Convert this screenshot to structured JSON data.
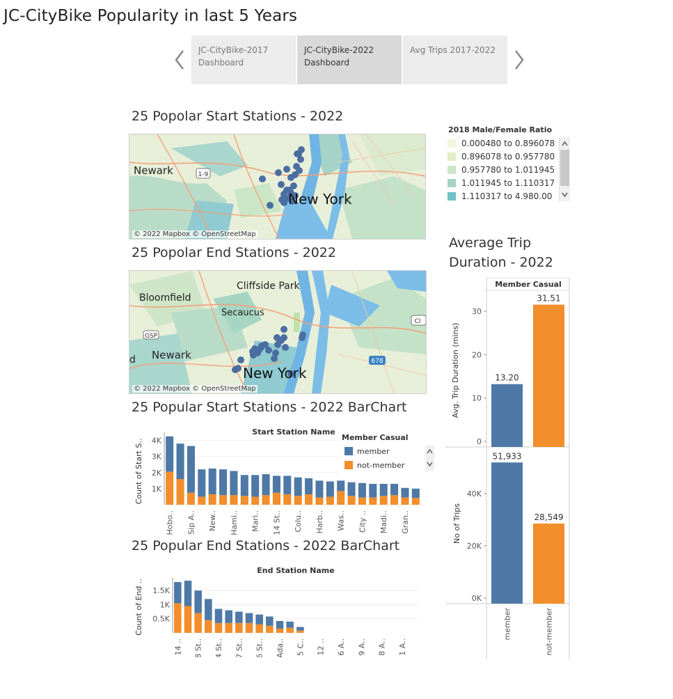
{
  "title": "JC-CityBike Popularity in last 5 Years",
  "tabs": [
    {
      "label": "JC-CityBike-2017 Dashboard",
      "line1": "JC-CityBike-2017",
      "line2": "Dashboard",
      "active": false
    },
    {
      "label": "JC-CityBike-2022 Dashboard",
      "line1": "JC-CityBike-2022",
      "line2": "Dashboard",
      "active": true
    },
    {
      "label": "Avg Trips 2017-2022",
      "line1": "Avg Trips 2017-2022",
      "line2": "",
      "active": false
    }
  ],
  "icons": {
    "prev": "chevron-left-icon",
    "next": "chevron-right-icon"
  },
  "maps": {
    "start": {
      "title": "25 Popolar Start Stations - 2022",
      "attribution": "© 2022 Mapbox © OpenStreetMap",
      "labels": [
        "Newark",
        "New York",
        "1-9"
      ]
    },
    "end": {
      "title": "25 Popolar End Stations - 2022",
      "attribution": "© 2022 Mapbox © OpenStreetMap",
      "labels": [
        "Cliffside Park",
        "Bloomfield",
        "Secaucus",
        "Newark",
        "New York",
        "GSP",
        "678",
        "CI",
        "d"
      ]
    }
  },
  "legend": {
    "title": "2018 Male/Female Ratio",
    "items": [
      {
        "label": "0.000480 to 0.896078",
        "color": "#f4f7dd"
      },
      {
        "label": "0.896078 to 0.957780",
        "color": "#e3eec4"
      },
      {
        "label": "0.957780 to 1.011945",
        "color": "#cfe5c8"
      },
      {
        "label": "1.011945 to 1.110317",
        "color": "#a6d5c4"
      },
      {
        "label": "1.110317 to 4.980.00",
        "color": "#6fc0c7"
      }
    ]
  },
  "colors": {
    "member": "#4e79a7",
    "not_member": "#f28e2b"
  },
  "bar_sections": {
    "start": "25 Popular Start Stations - 2022 BarChart",
    "end": "25 Popular End Stations - 2022 BarChart"
  },
  "avg_section_title": [
    "Average Trip",
    "Duration - 2022"
  ],
  "chart_data": [
    {
      "type": "bar",
      "stacked": true,
      "title": "Start Station Name",
      "ylabel": "Count of Start S..",
      "yticks": [
        "1K",
        "2K",
        "3K",
        "4K"
      ],
      "ylim": [
        0,
        4500
      ],
      "legend": {
        "title": "Member Casual",
        "position": "top-right",
        "entries": [
          "member",
          "not-member"
        ]
      },
      "categories": [
        "Hobo..",
        "",
        "Sip A..",
        "",
        "New..",
        "",
        "Hami..",
        "",
        "Mari..",
        "",
        "14 St..",
        "",
        "Colu..",
        "",
        "Harb..",
        "",
        "Was..",
        "",
        "City ..",
        "",
        "Madi..",
        "",
        "Gran..",
        ""
      ],
      "series": [
        {
          "name": "member",
          "values": [
            2200,
            2200,
            2900,
            1700,
            1600,
            1600,
            1500,
            1300,
            1350,
            1300,
            1050,
            1150,
            1150,
            1000,
            1050,
            950,
            650,
            850,
            900,
            850,
            750,
            700,
            600,
            580
          ]
        },
        {
          "name": "not-member",
          "values": [
            2050,
            1600,
            750,
            500,
            650,
            600,
            600,
            550,
            500,
            600,
            750,
            650,
            550,
            650,
            450,
            500,
            850,
            550,
            450,
            450,
            550,
            600,
            450,
            420
          ]
        }
      ]
    },
    {
      "type": "bar",
      "stacked": true,
      "title": "End Station Name",
      "ylabel": "Count of End ..",
      "yticks": [
        "0.5K",
        "1K",
        "1.5K"
      ],
      "ylim": [
        0,
        1950
      ],
      "categories": [
        "14 ..",
        "",
        "8 St..",
        "",
        "4 St..",
        "",
        "7 St..",
        "",
        "6 St..",
        "",
        "Ada..",
        "",
        "5 C..",
        "",
        "12 ..",
        "",
        "6 A..",
        "",
        "9 A..",
        "",
        "8 A..",
        "",
        "1 A..",
        ""
      ],
      "series": [
        {
          "name": "member",
          "values": [
            750,
            900,
            800,
            750,
            500,
            450,
            400,
            350,
            350,
            330,
            270,
            220,
            130,
            0,
            0,
            0,
            0,
            0,
            0,
            0,
            0,
            0,
            0,
            0
          ]
        },
        {
          "name": "not-member",
          "values": [
            1050,
            950,
            700,
            450,
            350,
            350,
            350,
            350,
            300,
            250,
            150,
            180,
            80,
            0,
            0,
            0,
            0,
            0,
            0,
            0,
            0,
            0,
            0,
            0
          ]
        }
      ]
    },
    {
      "type": "bar",
      "title": "Member Casual",
      "categories": [
        "member",
        "not-member"
      ],
      "panels": [
        {
          "ylabel": "Avg. Trip Duration (mins)",
          "values": [
            13.2,
            31.51
          ],
          "labels": [
            "13.20",
            "31.51"
          ],
          "yticks": [
            "0",
            "10",
            "20",
            "30"
          ],
          "ylim": [
            0,
            34.5
          ]
        },
        {
          "ylabel": "No of Trips",
          "values": [
            51933,
            28549
          ],
          "labels": [
            "51,933",
            "28,549"
          ],
          "yticks": [
            "0K",
            "20K",
            "40K"
          ],
          "ylim": [
            0,
            56000
          ]
        }
      ]
    }
  ]
}
